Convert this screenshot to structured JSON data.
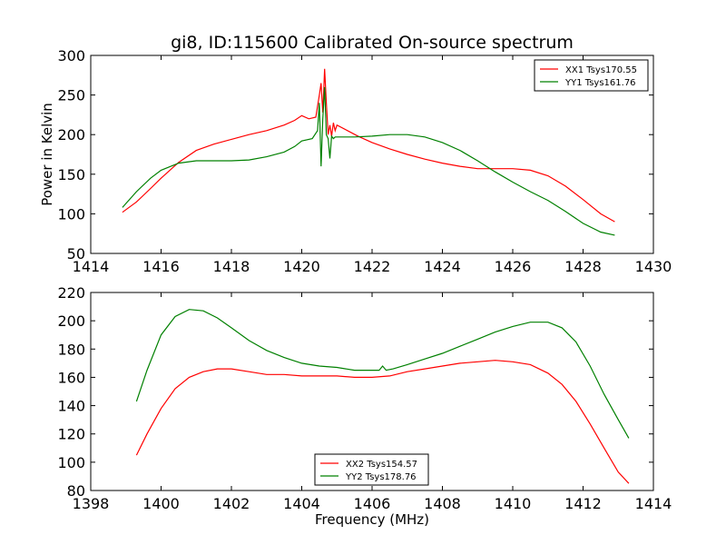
{
  "title": "gi8, ID:115600 Calibrated On-source spectrum",
  "chart_data": [
    {
      "type": "line",
      "title": "gi8, ID:115600 Calibrated On-source spectrum",
      "xlabel": "",
      "ylabel": "Power in Kelvin",
      "xlim": [
        1414,
        1430
      ],
      "ylim": [
        50,
        300
      ],
      "xticks": [
        "1414",
        "1416",
        "1418",
        "1420",
        "1422",
        "1424",
        "1426",
        "1428",
        "1430"
      ],
      "yticks": [
        "50",
        "100",
        "150",
        "200",
        "250",
        "300"
      ],
      "grid": false,
      "legend": "top-right",
      "series": [
        {
          "name": "XX1 Tsys170.55",
          "color": "#ff0000",
          "x": [
            1414.9,
            1415.3,
            1415.7,
            1416.0,
            1416.5,
            1417.0,
            1417.5,
            1418.0,
            1418.5,
            1419.0,
            1419.5,
            1419.8,
            1420.0,
            1420.2,
            1420.4,
            1420.5,
            1420.55,
            1420.6,
            1420.65,
            1420.7,
            1420.75,
            1420.8,
            1420.85,
            1420.9,
            1420.95,
            1421.0,
            1421.3,
            1421.6,
            1422.0,
            1422.5,
            1423.0,
            1423.5,
            1424.0,
            1424.5,
            1425.0,
            1425.5,
            1426.0,
            1426.5,
            1427.0,
            1427.5,
            1428.0,
            1428.5,
            1428.9
          ],
          "y": [
            102,
            115,
            132,
            145,
            165,
            180,
            188,
            194,
            200,
            205,
            212,
            218,
            224,
            220,
            222,
            250,
            265,
            228,
            283,
            240,
            200,
            212,
            198,
            215,
            205,
            212,
            205,
            198,
            190,
            182,
            175,
            169,
            164,
            160,
            157,
            157,
            157,
            155,
            148,
            135,
            118,
            100,
            90
          ]
        },
        {
          "name": "YY1 Tsys161.76",
          "color": "#008000",
          "x": [
            1414.9,
            1415.3,
            1415.7,
            1416.0,
            1416.5,
            1417.0,
            1417.5,
            1418.0,
            1418.5,
            1419.0,
            1419.5,
            1419.8,
            1420.0,
            1420.3,
            1420.45,
            1420.5,
            1420.55,
            1420.6,
            1420.65,
            1420.7,
            1420.75,
            1420.8,
            1420.85,
            1420.9,
            1420.95,
            1421.0,
            1421.5,
            1422.0,
            1422.5,
            1423.0,
            1423.5,
            1424.0,
            1424.5,
            1425.0,
            1425.5,
            1426.0,
            1426.5,
            1427.0,
            1427.5,
            1428.0,
            1428.5,
            1428.9
          ],
          "y": [
            108,
            128,
            145,
            155,
            164,
            167,
            167,
            167,
            168,
            172,
            178,
            185,
            192,
            195,
            205,
            240,
            160,
            220,
            260,
            200,
            195,
            170,
            198,
            195,
            197,
            197,
            197,
            198,
            200,
            200,
            197,
            190,
            180,
            167,
            153,
            140,
            128,
            117,
            103,
            88,
            77,
            73
          ]
        }
      ]
    },
    {
      "type": "line",
      "title": "",
      "xlabel": "Frequency (MHz)",
      "ylabel": "",
      "xlim": [
        1398,
        1414
      ],
      "ylim": [
        80,
        220
      ],
      "xticks": [
        "1398",
        "1400",
        "1402",
        "1404",
        "1406",
        "1408",
        "1410",
        "1412",
        "1414"
      ],
      "yticks": [
        "80",
        "100",
        "120",
        "140",
        "160",
        "180",
        "200",
        "220"
      ],
      "grid": false,
      "legend": "bottom-center",
      "series": [
        {
          "name": "XX2 Tsys154.57",
          "color": "#ff0000",
          "x": [
            1399.3,
            1399.6,
            1400.0,
            1400.4,
            1400.8,
            1401.2,
            1401.6,
            1402.0,
            1402.5,
            1403.0,
            1403.5,
            1404.0,
            1404.5,
            1405.0,
            1405.5,
            1406.0,
            1406.5,
            1407.0,
            1407.5,
            1408.0,
            1408.5,
            1409.0,
            1409.5,
            1410.0,
            1410.5,
            1411.0,
            1411.4,
            1411.8,
            1412.2,
            1412.6,
            1413.0,
            1413.3
          ],
          "y": [
            105,
            120,
            138,
            152,
            160,
            164,
            166,
            166,
            164,
            162,
            162,
            161,
            161,
            161,
            160,
            160,
            161,
            164,
            166,
            168,
            170,
            171,
            172,
            171,
            169,
            163,
            155,
            143,
            127,
            110,
            93,
            85
          ]
        },
        {
          "name": "YY2 Tsys178.76",
          "color": "#008000",
          "x": [
            1399.3,
            1399.6,
            1400.0,
            1400.4,
            1400.8,
            1401.2,
            1401.6,
            1402.0,
            1402.5,
            1403.0,
            1403.5,
            1404.0,
            1404.5,
            1405.0,
            1405.5,
            1406.0,
            1406.2,
            1406.3,
            1406.4,
            1406.6,
            1407.0,
            1407.5,
            1408.0,
            1408.5,
            1409.0,
            1409.5,
            1410.0,
            1410.5,
            1411.0,
            1411.4,
            1411.8,
            1412.2,
            1412.6,
            1413.0,
            1413.3
          ],
          "y": [
            143,
            165,
            190,
            203,
            208,
            207,
            202,
            195,
            186,
            179,
            174,
            170,
            168,
            167,
            165,
            165,
            165,
            168,
            165,
            166,
            169,
            173,
            177,
            182,
            187,
            192,
            196,
            199,
            199,
            195,
            185,
            168,
            148,
            130,
            117
          ]
        }
      ]
    }
  ]
}
